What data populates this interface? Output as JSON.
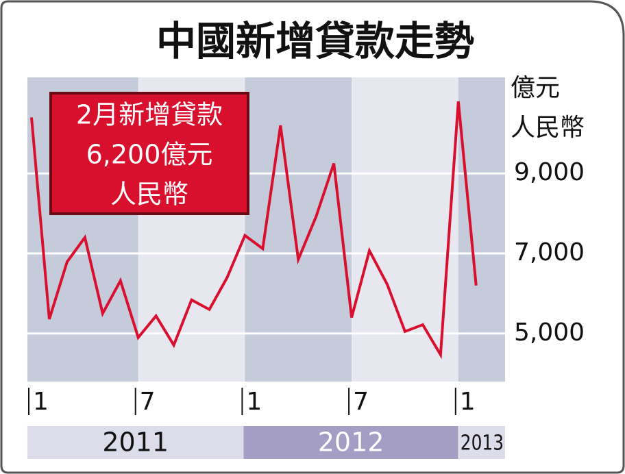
{
  "chart_data": {
    "type": "line",
    "title": "中國新增貸款走勢",
    "y_label": [
      "億元",
      "人民幣"
    ],
    "annotation": [
      "2月新增貸款",
      "6,200億元",
      "人民幣"
    ],
    "categories": [
      "1",
      null,
      null,
      null,
      null,
      null,
      "7",
      null,
      null,
      null,
      null,
      null,
      "1",
      null,
      null,
      null,
      null,
      null,
      "7",
      null,
      null,
      null,
      null,
      null,
      "1",
      null
    ],
    "years": [
      "2011",
      "2012",
      "2013"
    ],
    "series": [
      {
        "color": "#d8102e",
        "values": [
          10400,
          5360,
          6790,
          7400,
          5500,
          6320,
          4900,
          5440,
          4710,
          5840,
          5600,
          6400,
          7450,
          7120,
          10200,
          6850,
          7920,
          9250,
          5400,
          7070,
          6230,
          5050,
          5220,
          4470,
          10800,
          6200
        ]
      }
    ],
    "ylim": [
      3800,
      11400
    ],
    "yticks": [
      {
        "value": 5000,
        "label": "5,000"
      },
      {
        "value": 7000,
        "label": "7,000"
      },
      {
        "value": 9000,
        "label": "9,000"
      }
    ],
    "grid": true
  }
}
